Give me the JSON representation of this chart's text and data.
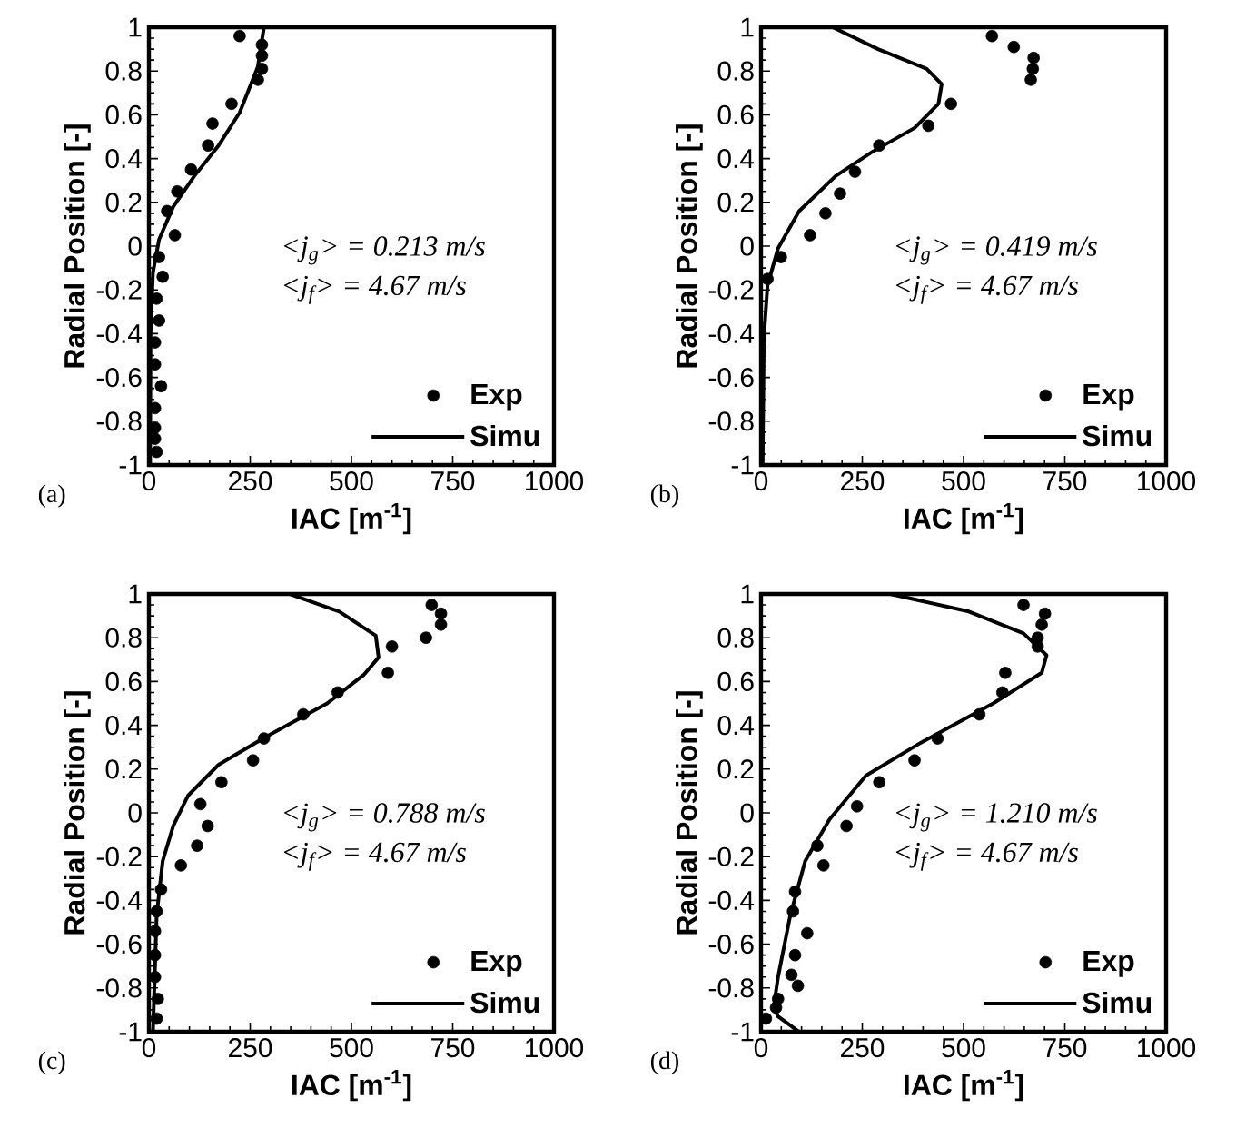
{
  "chart_data": [
    {
      "type": "scatter",
      "xlabel": "IAC [m$^{-1}$]",
      "ylabel": "Radial Position [-]",
      "xlim": [
        0,
        1000
      ],
      "ylim": [
        -1,
        1
      ],
      "xticks": [
        0,
        250,
        500,
        750,
        1000
      ],
      "yticks": [
        -1,
        -0.8,
        -0.6,
        -0.4,
        -0.2,
        0,
        0.2,
        0.4,
        0.6,
        0.8,
        1
      ],
      "legend": "bottom right",
      "grid": false,
      "annotations": [
        "<j$_{g}$> = 0.213 m/s",
        "<j$_{f}$> = 4.67 m/s",
        "(a)"
      ],
      "series": [
        {
          "name": "Exp",
          "type": "scatter",
          "marker": "circle",
          "color": "#000000",
          "x": [
            224,
            279,
            279,
            279,
            269,
            204,
            157,
            146,
            104,
            70,
            45,
            64,
            25,
            34,
            19,
            25,
            15,
            15,
            30,
            15,
            15,
            15,
            19
          ],
          "values": [
            0.96,
            0.92,
            0.87,
            0.81,
            0.76,
            0.65,
            0.56,
            0.46,
            0.35,
            0.25,
            0.16,
            0.05,
            -0.05,
            -0.14,
            -0.24,
            -0.34,
            -0.44,
            -0.54,
            -0.64,
            -0.74,
            -0.83,
            -0.88,
            -0.94
          ]
        },
        {
          "name": "Simu",
          "type": "line",
          "line_style": "solid",
          "color": "#000000",
          "x": [
            284,
            269,
            254,
            224,
            172,
            112,
            60,
            25,
            10,
            4,
            3
          ],
          "values": [
            1.0,
            0.82,
            0.75,
            0.61,
            0.46,
            0.32,
            0.18,
            0.03,
            -0.12,
            -0.4,
            -1
          ]
        }
      ]
    },
    {
      "type": "scatter",
      "xlabel": "IAC [m$^{-1}$]",
      "ylabel": "Radial Position [-]",
      "xlim": [
        0,
        1000
      ],
      "ylim": [
        -1,
        1
      ],
      "xticks": [
        0,
        250,
        500,
        750,
        1000
      ],
      "yticks": [
        -1,
        -0.8,
        -0.6,
        -0.4,
        -0.2,
        0,
        0.2,
        0.4,
        0.6,
        0.8,
        1
      ],
      "legend": "bottom right",
      "grid": false,
      "annotations": [
        "<j$_{g}$> = 0.419 m/s",
        "<j$_{f}$> = 4.67 m/s",
        "(b)"
      ],
      "series": [
        {
          "name": "Exp",
          "type": "scatter",
          "marker": "circle",
          "color": "#000000",
          "x": [
            570,
            624,
            673,
            671,
            666,
            469,
            413,
            292,
            232,
            195,
            159,
            121,
            49,
            16
          ],
          "values": [
            0.96,
            0.91,
            0.86,
            0.81,
            0.76,
            0.65,
            0.55,
            0.46,
            0.34,
            0.24,
            0.15,
            0.05,
            -0.05,
            -0.15
          ]
        },
        {
          "name": "Simu",
          "type": "line",
          "line_style": "solid",
          "color": "#000000",
          "x": [
            177,
            289,
            409,
            446,
            438,
            379,
            274,
            184,
            94,
            42,
            16,
            7,
            4
          ],
          "values": [
            1.0,
            0.9,
            0.81,
            0.74,
            0.65,
            0.54,
            0.43,
            0.32,
            0.16,
            -0.01,
            -0.18,
            -0.42,
            -1
          ]
        }
      ]
    },
    {
      "type": "scatter",
      "xlabel": "IAC [m$^{-1}$]",
      "ylabel": "Radial Position [-]",
      "xlim": [
        0,
        1000
      ],
      "ylim": [
        -1,
        1
      ],
      "xticks": [
        0,
        250,
        500,
        750,
        1000
      ],
      "yticks": [
        -1,
        -0.8,
        -0.6,
        -0.4,
        -0.2,
        0,
        0.2,
        0.4,
        0.6,
        0.8,
        1
      ],
      "legend": "bottom right",
      "grid": false,
      "annotations": [
        "<j$_{g}$> = 0.788 m/s",
        "<j$_{f}$> = 4.67 m/s",
        "(c)"
      ],
      "series": [
        {
          "name": "Exp",
          "type": "scatter",
          "marker": "circle",
          "color": "#000000",
          "x": [
            698,
            721,
            721,
            684,
            600,
            590,
            466,
            381,
            284,
            257,
            179,
            127,
            145,
            119,
            79,
            30,
            19,
            15,
            15,
            15,
            22,
            19
          ],
          "values": [
            0.95,
            0.91,
            0.86,
            0.8,
            0.76,
            0.64,
            0.55,
            0.45,
            0.34,
            0.24,
            0.14,
            0.04,
            -0.06,
            -0.15,
            -0.24,
            -0.35,
            -0.45,
            -0.54,
            -0.65,
            -0.75,
            -0.85,
            -0.94
          ]
        },
        {
          "name": "Simu",
          "type": "line",
          "line_style": "solid",
          "color": "#000000",
          "x": [
            348,
            470,
            560,
            567,
            530,
            440,
            291,
            172,
            97,
            60,
            34,
            19,
            10
          ],
          "values": [
            1.0,
            0.92,
            0.81,
            0.71,
            0.63,
            0.5,
            0.35,
            0.22,
            0.08,
            -0.06,
            -0.22,
            -0.47,
            -1
          ]
        }
      ]
    },
    {
      "type": "scatter",
      "xlabel": "IAC [m$^{-1}$]",
      "ylabel": "Radial Position [-]",
      "xlim": [
        0,
        1000
      ],
      "ylim": [
        -1,
        1
      ],
      "xticks": [
        0,
        250,
        500,
        750,
        1000
      ],
      "yticks": [
        -1,
        -0.8,
        -0.6,
        -0.4,
        -0.2,
        0,
        0.2,
        0.4,
        0.6,
        0.8,
        1
      ],
      "legend": "bottom right",
      "grid": false,
      "annotations": [
        "<j$_{g}$> = 1.210 m/s",
        "<j$_{f}$> = 4.67 m/s",
        "(d)"
      ],
      "series": [
        {
          "name": "Exp",
          "type": "scatter",
          "marker": "circle",
          "color": "#000000",
          "x": [
            648,
            701,
            693,
            683,
            683,
            603,
            596,
            539,
            436,
            379,
            292,
            237,
            211,
            139,
            154,
            84,
            79,
            114,
            84,
            75,
            91,
            42,
            37,
            12
          ],
          "values": [
            0.95,
            0.91,
            0.86,
            0.8,
            0.76,
            0.64,
            0.55,
            0.45,
            0.34,
            0.24,
            0.14,
            0.03,
            -0.06,
            -0.15,
            -0.24,
            -0.36,
            -0.45,
            -0.55,
            -0.65,
            -0.74,
            -0.79,
            -0.85,
            -0.89,
            -0.94
          ]
        },
        {
          "name": "Simu",
          "type": "line",
          "line_style": "solid",
          "color": "#000000",
          "x": [
            319,
            513,
            648,
            705,
            693,
            573,
            394,
            259,
            169,
            109,
            72,
            42,
            31,
            42,
            94
          ],
          "values": [
            1.0,
            0.92,
            0.82,
            0.72,
            0.64,
            0.5,
            0.32,
            0.17,
            -0.03,
            -0.22,
            -0.47,
            -0.75,
            -0.89,
            -0.93,
            -1
          ]
        }
      ]
    }
  ]
}
